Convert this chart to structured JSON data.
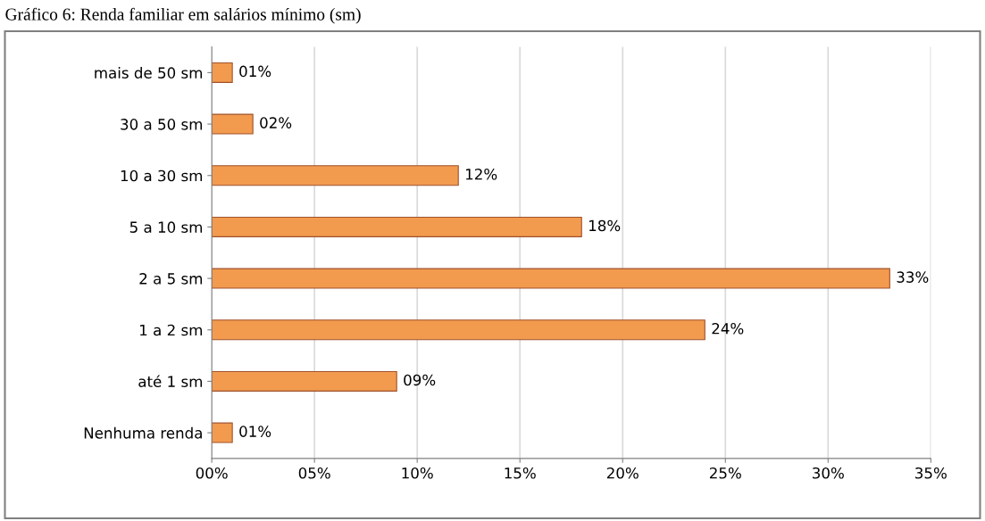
{
  "chart_data": {
    "type": "bar",
    "orientation": "horizontal",
    "title": "Gráfico 6: Renda familiar em salários mínimo (sm)",
    "categories": [
      "mais de 50 sm",
      "30 a 50 sm",
      "10 a 30 sm",
      "5 a 10 sm",
      "2 a 5 sm",
      "1 a 2 sm",
      "até 1 sm",
      "Nenhuma renda"
    ],
    "values": [
      1,
      2,
      12,
      18,
      33,
      24,
      9,
      1
    ],
    "value_labels": [
      "01%",
      "02%",
      "12%",
      "18%",
      "33%",
      "24%",
      "09%",
      "01%"
    ],
    "color": "#f29b4f",
    "xlim": [
      0,
      35
    ],
    "xticks": [
      {
        "value": 0,
        "label": "00%"
      },
      {
        "value": 5,
        "label": "05%"
      },
      {
        "value": 10,
        "label": "10%"
      },
      {
        "value": 15,
        "label": "15%"
      },
      {
        "value": 20,
        "label": "20%"
      },
      {
        "value": 25,
        "label": "25%"
      },
      {
        "value": 30,
        "label": "30%"
      },
      {
        "value": 35,
        "label": "35%"
      }
    ],
    "grid": "x",
    "legend": false
  }
}
